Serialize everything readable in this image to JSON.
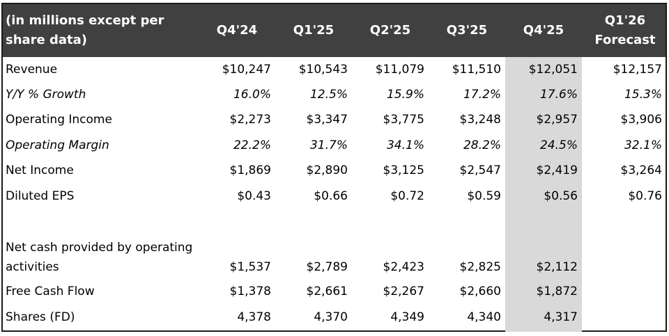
{
  "table": {
    "header": {
      "label": "(in millions except per share data)",
      "columns": [
        "Q4'24",
        "Q1'25",
        "Q2'25",
        "Q3'25",
        "Q4'25"
      ],
      "forecast_line1": "Q1'26",
      "forecast_line2": "Forecast"
    },
    "highlighted_column": "Q4'25",
    "highlight_color": "#d9d9d9",
    "header_bg_color": "#404040",
    "rows": [
      {
        "label": "Revenue",
        "italic": false,
        "values": [
          "$10,247",
          "$10,543",
          "$11,079",
          "$11,510",
          "$12,051",
          "$12,157"
        ]
      },
      {
        "label": "Y/Y % Growth",
        "italic": true,
        "values": [
          "16.0%",
          "12.5%",
          "15.9%",
          "17.2%",
          "17.6%",
          "15.3%"
        ]
      },
      {
        "label": "Operating Income",
        "italic": false,
        "values": [
          "$2,273",
          "$3,347",
          "$3,775",
          "$3,248",
          "$2,957",
          "$3,906"
        ]
      },
      {
        "label": "Operating Margin",
        "italic": true,
        "values": [
          "22.2%",
          "31.7%",
          "34.1%",
          "28.2%",
          "24.5%",
          "32.1%"
        ]
      },
      {
        "label": "Net Income",
        "italic": false,
        "values": [
          "$1,869",
          "$2,890",
          "$3,125",
          "$2,547",
          "$2,419",
          "$3,264"
        ]
      },
      {
        "label": "Diluted EPS",
        "italic": false,
        "values": [
          "$0.43",
          "$0.66",
          "$0.72",
          "$0.59",
          "$0.56",
          "$0.76"
        ]
      },
      {
        "label_line1": "Net cash provided by operating",
        "label_line2": "activities",
        "italic": false,
        "values": [
          "$1,537",
          "$2,789",
          "$2,423",
          "$2,825",
          "$2,112",
          ""
        ]
      },
      {
        "label": "Free Cash Flow",
        "italic": false,
        "values": [
          "$1,378",
          "$2,661",
          "$2,267",
          "$2,660",
          "$1,872",
          ""
        ]
      },
      {
        "label": "Shares (FD)",
        "italic": false,
        "values": [
          "4,378",
          "4,370",
          "4,349",
          "4,340",
          "4,317",
          ""
        ]
      }
    ]
  }
}
